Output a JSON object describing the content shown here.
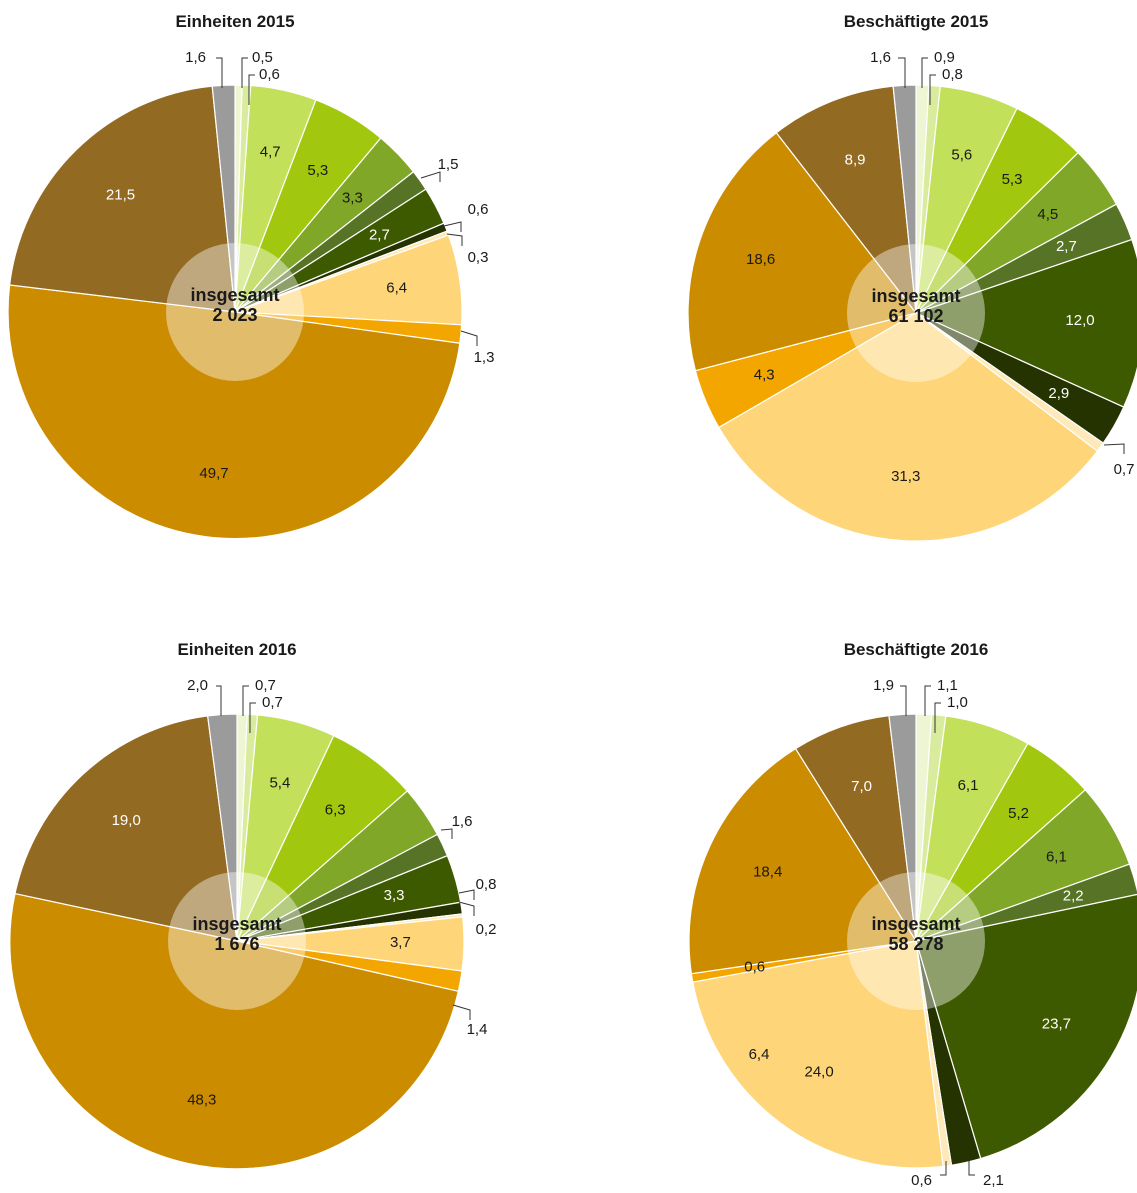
{
  "chart_data": [
    {
      "type": "pie",
      "title": "Einheiten 2015",
      "center": {
        "line1": "insgesamt",
        "line2": "2 023"
      },
      "slices": [
        {
          "value": 0.5,
          "label": "0,5",
          "color": "#eef5d2"
        },
        {
          "value": 0.6,
          "label": "0,6",
          "color": "#d9ec9e"
        },
        {
          "value": 4.7,
          "label": "4,7",
          "color": "#c3e05a"
        },
        {
          "value": 5.3,
          "label": "5,3",
          "color": "#a1c80f"
        },
        {
          "value": 3.3,
          "label": "3,3",
          "color": "#80a727"
        },
        {
          "value": 1.5,
          "label": "1,5",
          "color": "#577325"
        },
        {
          "value": 2.7,
          "label": "2,7",
          "color": "#3e5a00"
        },
        {
          "value": 0.6,
          "label": "0,6",
          "color": "#243300"
        },
        {
          "value": 0.3,
          "label": "0,3",
          "color": "#fde9ba"
        },
        {
          "value": 6.4,
          "label": "6,4",
          "color": "#fed679"
        },
        {
          "value": 1.3,
          "label": "1,3",
          "color": "#f4a600"
        },
        {
          "value": 49.7,
          "label": "49,7",
          "color": "#cc8c00"
        },
        {
          "value": 21.5,
          "label": "21,5",
          "color": "#936a22"
        },
        {
          "value": 1.6,
          "label": "1,6",
          "color": "#9b9b9b"
        }
      ]
    },
    {
      "type": "pie",
      "title": "Beschäftigte 2015",
      "center": {
        "line1": "insgesamt",
        "line2": "61 102"
      },
      "slices": [
        {
          "value": 0.9,
          "label": "0,9",
          "color": "#eef5d2"
        },
        {
          "value": 0.8,
          "label": "0,8",
          "color": "#d9ec9e"
        },
        {
          "value": 5.6,
          "label": "5,6",
          "color": "#c3e05a"
        },
        {
          "value": 5.3,
          "label": "5,3",
          "color": "#a1c80f"
        },
        {
          "value": 4.5,
          "label": "4,5",
          "color": "#80a727"
        },
        {
          "value": 2.7,
          "label": "2,7",
          "color": "#577325"
        },
        {
          "value": 12.0,
          "label": "12,0",
          "color": "#3e5a00"
        },
        {
          "value": 2.9,
          "label": "2,9",
          "color": "#243300"
        },
        {
          "value": 0.7,
          "label": "0,7",
          "color": "#fde9ba"
        },
        {
          "value": 31.3,
          "label": "31,3",
          "color": "#fed679"
        },
        {
          "value": 4.3,
          "label": "4,3",
          "color": "#f4a600"
        },
        {
          "value": 18.6,
          "label": "18,6",
          "color": "#cc8c00"
        },
        {
          "value": 8.9,
          "label": "8,9",
          "color": "#936a22"
        },
        {
          "value": 1.6,
          "label": "1,6",
          "color": "#9b9b9b"
        }
      ]
    },
    {
      "type": "pie",
      "title": "Einheiten 2016",
      "center": {
        "line1": "insgesamt",
        "line2": "1 676"
      },
      "slices": [
        {
          "value": 0.7,
          "label": "0,7",
          "color": "#eef5d2"
        },
        {
          "value": 0.7,
          "label": "0,7",
          "color": "#d9ec9e"
        },
        {
          "value": 5.4,
          "label": "5,4",
          "color": "#c3e05a"
        },
        {
          "value": 6.3,
          "label": "6,3",
          "color": "#a1c80f"
        },
        {
          "value": 3.6,
          "label": "",
          "color": "#80a727"
        },
        {
          "value": 1.6,
          "label": "1,6",
          "color": "#577325"
        },
        {
          "value": 3.3,
          "label": "3,3",
          "color": "#3e5a00"
        },
        {
          "value": 0.8,
          "label": "0,8",
          "color": "#243300"
        },
        {
          "value": 0.2,
          "label": "0,2",
          "color": "#fde9ba"
        },
        {
          "value": 3.7,
          "label": "3,7",
          "color": "#fed679"
        },
        {
          "value": 1.4,
          "label": "1,4",
          "color": "#f4a600"
        },
        {
          "value": 48.3,
          "label": "48,3",
          "color": "#cc8c00"
        },
        {
          "value": 19.0,
          "label": "19,0",
          "color": "#936a22"
        },
        {
          "value": 2.0,
          "label": "2,0",
          "color": "#9b9b9b"
        }
      ]
    },
    {
      "type": "pie",
      "title": "Beschäftigte 2016",
      "center": {
        "line1": "insgesamt",
        "line2": "58 278"
      },
      "slices": [
        {
          "value": 1.1,
          "label": "1,1",
          "color": "#eef5d2"
        },
        {
          "value": 1.0,
          "label": "1,0",
          "color": "#d9ec9e"
        },
        {
          "value": 6.1,
          "label": "6,1",
          "color": "#c3e05a"
        },
        {
          "value": 5.2,
          "label": "5,2",
          "color": "#a1c80f"
        },
        {
          "value": 6.1,
          "label": "6,1",
          "color": "#80a727"
        },
        {
          "value": 2.2,
          "label": "2,2",
          "color": "#577325"
        },
        {
          "value": 23.7,
          "label": "23,7",
          "color": "#3e5a00"
        },
        {
          "value": 2.1,
          "label": "2,1",
          "color": "#243300"
        },
        {
          "value": 0.6,
          "label": "0,6",
          "color": "#fde9ba"
        },
        {
          "value": 24.0,
          "label": "24,0",
          "color": "#fed679"
        },
        {
          "value": 0.6,
          "label": "0,6",
          "color": "#f4a600"
        },
        {
          "value": 18.4,
          "label": "18,4",
          "color": "#cc8c00"
        },
        {
          "value": 7.0,
          "label": "7,0",
          "color": "#936a22"
        },
        {
          "value": 1.9,
          "label": "1,9",
          "color": "#9b9b9b"
        }
      ],
      "extra_labels": [
        "6,4"
      ]
    }
  ]
}
